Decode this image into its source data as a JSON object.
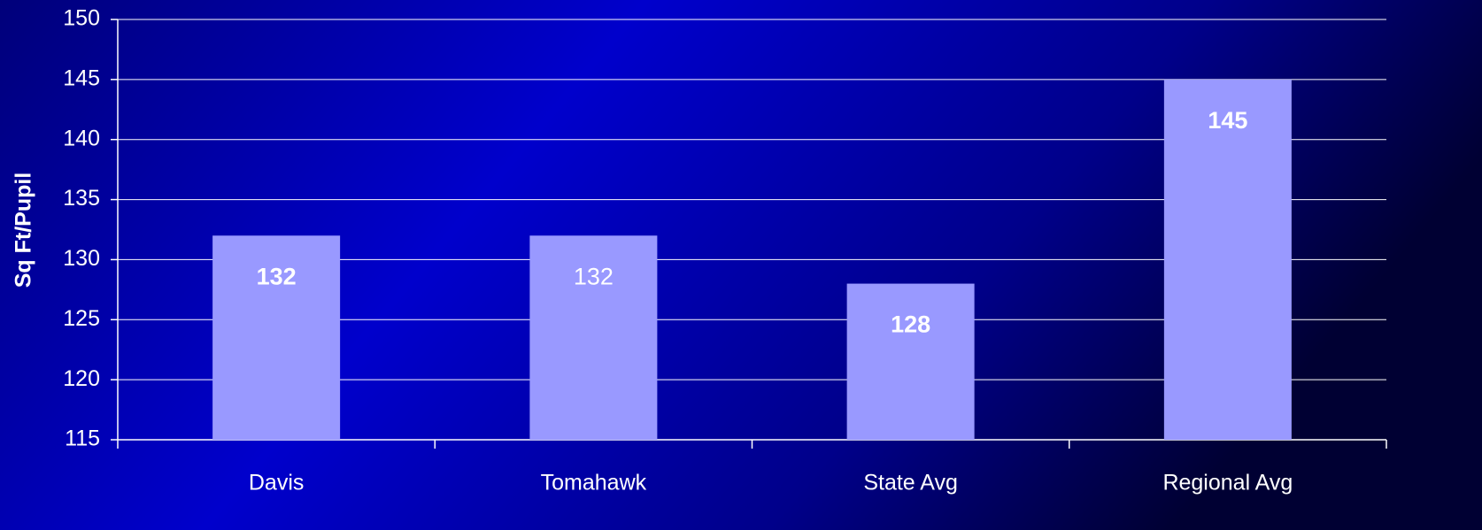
{
  "chart_data": {
    "type": "bar",
    "y_label": "Sq Ft/Pupil",
    "categories": [
      "Davis",
      "Tomahawk",
      "State Avg",
      "Regional Avg"
    ],
    "values": [
      132,
      132,
      128,
      145
    ],
    "color": "#9999ff",
    "ylim": [
      115,
      150
    ],
    "yticks": [
      115,
      120,
      125,
      130,
      135,
      140,
      145,
      150
    ],
    "grid": true
  }
}
